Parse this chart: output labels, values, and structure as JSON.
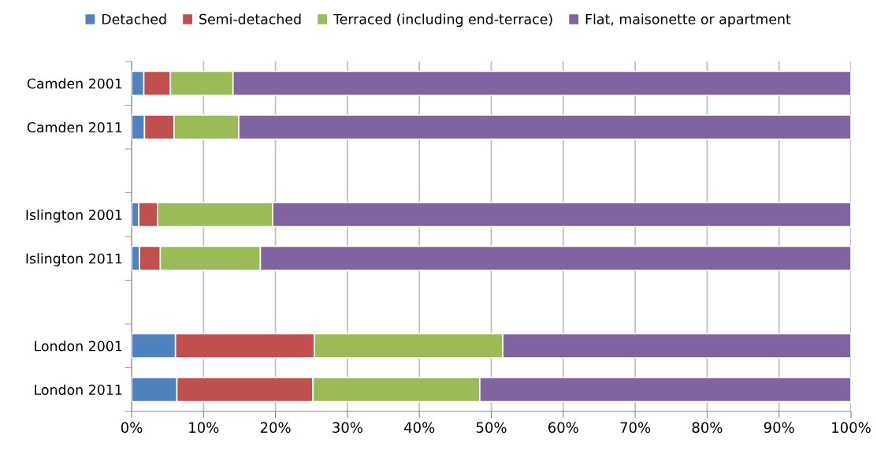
{
  "chart_data": {
    "type": "bar",
    "orientation": "horizontal",
    "stacked": true,
    "categories": [
      "Camden 2001",
      "Camden 2011",
      null,
      "Islington 2001",
      "Islington 2011",
      null,
      "London 2001",
      "London 2011"
    ],
    "series": [
      {
        "name": "Detached",
        "color": "#4f81bd",
        "values": [
          1.7,
          1.8,
          null,
          1.0,
          1.1,
          null,
          6.1,
          6.3
        ]
      },
      {
        "name": "Semi-detached",
        "color": "#c0504d",
        "values": [
          3.7,
          4.1,
          null,
          2.6,
          2.9,
          null,
          19.3,
          18.9
        ]
      },
      {
        "name": "Terraced (including end-terrace)",
        "color": "#9bbb59",
        "values": [
          8.7,
          9.0,
          null,
          16.0,
          13.9,
          null,
          26.2,
          23.2
        ]
      },
      {
        "name": "Flat, maisonette or apartment",
        "color": "#8064a2",
        "values": [
          85.9,
          85.1,
          null,
          80.4,
          82.1,
          null,
          48.4,
          51.6
        ]
      }
    ],
    "xlim": [
      0,
      100
    ],
    "xticks": [
      {
        "value": 0,
        "label": "0%"
      },
      {
        "value": 10,
        "label": "10%"
      },
      {
        "value": 20,
        "label": "20%"
      },
      {
        "value": 30,
        "label": "30%"
      },
      {
        "value": 40,
        "label": "40%"
      },
      {
        "value": 50,
        "label": "50%"
      },
      {
        "value": 60,
        "label": "60%"
      },
      {
        "value": 70,
        "label": "70%"
      },
      {
        "value": 80,
        "label": "80%"
      },
      {
        "value": 90,
        "label": "90%"
      },
      {
        "value": 100,
        "label": "100%"
      }
    ],
    "grid": "x",
    "legend": "top"
  }
}
